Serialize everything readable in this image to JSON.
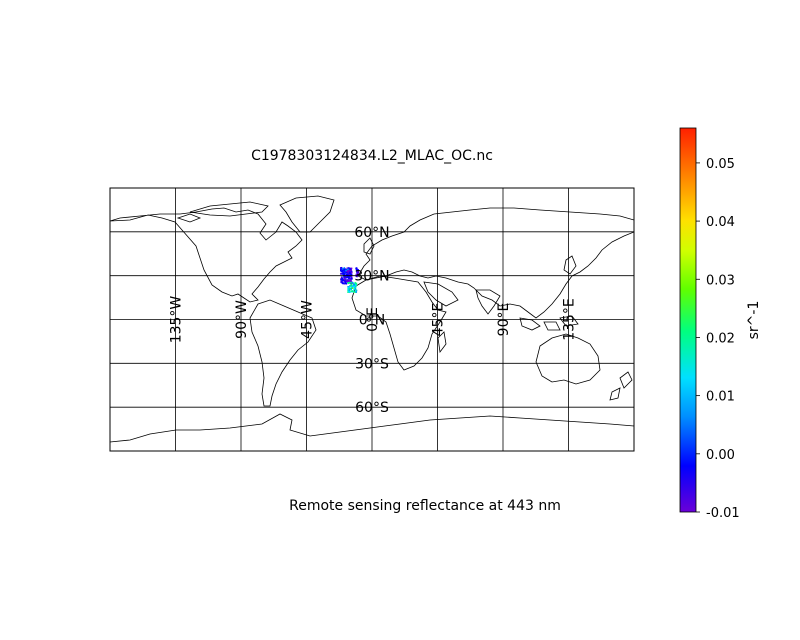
{
  "title": "C1978303124834.L2_MLAC_OC.nc",
  "caption": "Remote sensing reflectance at 443 nm",
  "map": {
    "projection": "Plate Carree (equirectangular)",
    "extent": {
      "lon": [
        -180,
        180
      ],
      "lat": [
        -90,
        90
      ]
    },
    "meridians": [
      -135,
      -90,
      -45,
      0,
      45,
      90,
      135
    ],
    "parallels": [
      -60,
      -30,
      0,
      30,
      60
    ],
    "lon_labels": [
      "135°W",
      "90°W",
      "45°W",
      "0°E",
      "45°E",
      "90°E",
      "135°E"
    ],
    "lat_labels": [
      "60°S",
      "30°S",
      "0°N",
      "30°N",
      "60°N"
    ]
  },
  "colorbar": {
    "label": "sr^-1",
    "min": -0.01,
    "max": 0.056,
    "ticks": [
      "0.05",
      "0.04",
      "0.03",
      "0.02",
      "0.01",
      "0.00",
      "-0.01"
    ],
    "tick_values": [
      0.05,
      0.04,
      0.03,
      0.02,
      0.01,
      0.0,
      -0.01
    ],
    "colormap": "rainbow",
    "colors": [
      "#6a00d8",
      "#0000ff",
      "#0090ff",
      "#00e0ff",
      "#00ff80",
      "#60ff00",
      "#d0ff00",
      "#ffe000",
      "#ff8000",
      "#ff2000"
    ]
  },
  "swath": {
    "lon_range": [
      -22,
      -10
    ],
    "lat_range": [
      18,
      36
    ],
    "value_range_low": [
      -0.01,
      0.002
    ],
    "value_range_high": [
      0.005,
      0.025
    ]
  }
}
